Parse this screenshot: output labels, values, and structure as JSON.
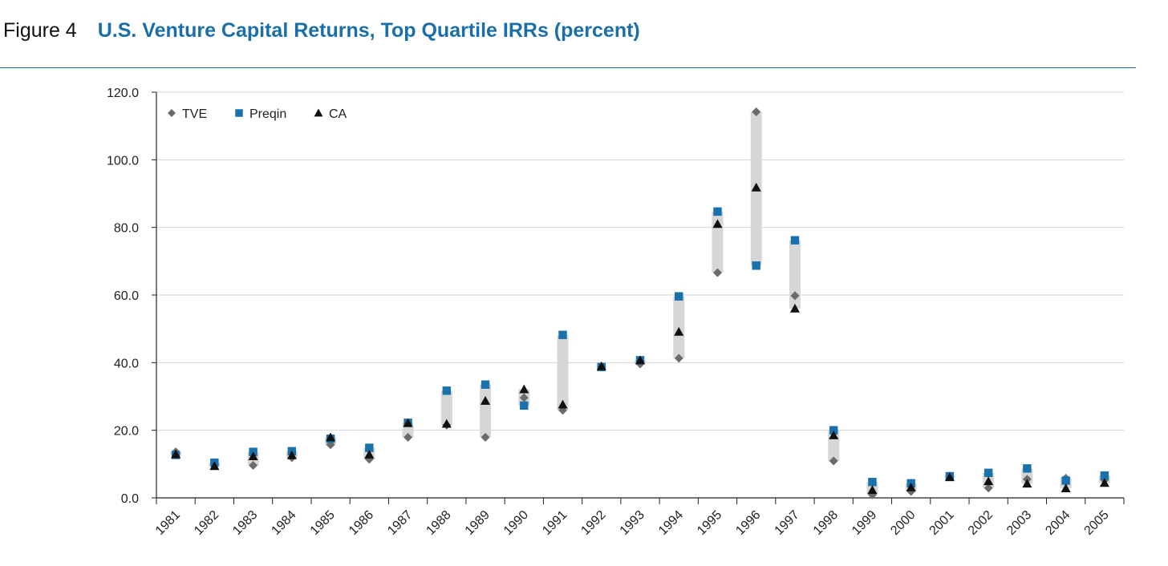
{
  "figure": {
    "label": "Figure 4",
    "title": "U.S. Venture Capital Returns, Top Quartile IRRs (percent)"
  },
  "chart_data": {
    "type": "scatter",
    "title": "U.S. Venture Capital Returns, Top Quartile IRRs (percent)",
    "xlabel": "",
    "ylabel": "",
    "ylim": [
      0,
      120
    ],
    "y_ticks": [
      "0.0",
      "20.0",
      "40.0",
      "60.0",
      "80.0",
      "100.0",
      "120.0"
    ],
    "grid": "horizontal",
    "legend_position": "top-left",
    "range_band": "light gray vertical bar spanning min to max of series each year",
    "categories": [
      "1981",
      "1982",
      "1983",
      "1984",
      "1985",
      "1986",
      "1987",
      "1988",
      "1989",
      "1990",
      "1991",
      "1992",
      "1993",
      "1994",
      "1995",
      "1996",
      "1997",
      "1998",
      "1999",
      "2000",
      "2001",
      "2002",
      "2003",
      "2004",
      "2005"
    ],
    "series": [
      {
        "name": "TVE",
        "marker": "diamond",
        "color": "#6b6b6b",
        "values": [
          13.6,
          9.8,
          9.6,
          11.9,
          15.7,
          11.4,
          17.9,
          21.5,
          17.9,
          29.6,
          25.9,
          38.7,
          39.6,
          41.3,
          66.6,
          114.2,
          59.8,
          10.9,
          0.9,
          1.9,
          6.4,
          2.9,
          5.5,
          5.8,
          5.3
        ]
      },
      {
        "name": "Preqin",
        "marker": "square",
        "color": "#1a72ad",
        "values": [
          12.7,
          10.4,
          13.6,
          13.8,
          17.5,
          14.8,
          22.2,
          31.7,
          33.5,
          27.3,
          48.2,
          38.7,
          40.7,
          59.6,
          84.7,
          68.7,
          76.2,
          20.0,
          4.7,
          4.3,
          6.4,
          7.4,
          8.7,
          5.1,
          6.6
        ]
      },
      {
        "name": "CA",
        "marker": "triangle",
        "color": "#111111",
        "values": [
          12.9,
          9.4,
          12.3,
          12.6,
          17.9,
          12.8,
          22.1,
          21.9,
          28.7,
          32.1,
          27.6,
          38.9,
          40.7,
          49.1,
          81.0,
          91.8,
          56.0,
          18.5,
          2.3,
          3.1,
          6.1,
          4.9,
          4.2,
          2.8,
          4.4
        ]
      }
    ]
  }
}
